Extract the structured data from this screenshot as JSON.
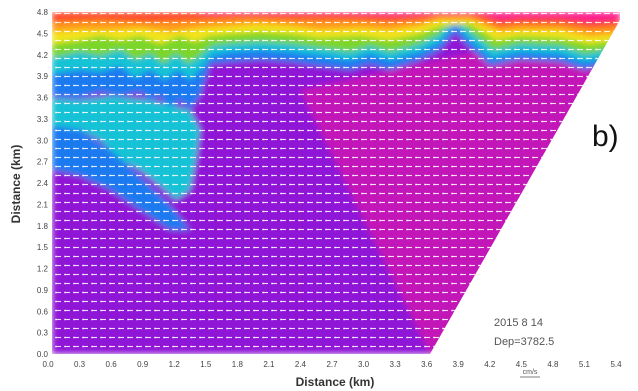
{
  "chart_data": {
    "type": "heatmap",
    "title": "",
    "panel_label": "b)",
    "xlabel": "Distance (km)",
    "ylabel": "Distance (km)",
    "xlim": [
      0,
      5.5
    ],
    "ylim": [
      0,
      4.8
    ],
    "x_ticks": [
      "0.0",
      "0.3",
      "0.6",
      "0.9",
      "1.2",
      "1.5",
      "1.8",
      "2.1",
      "2.4",
      "2.7",
      "3.0",
      "3.3",
      "3.6",
      "3.9",
      "4.2",
      "4.5",
      "4.8",
      "5.1",
      "5.4"
    ],
    "y_ticks": [
      "0.0",
      "0.3",
      "0.6",
      "0.9",
      "1.2",
      "1.5",
      "1.8",
      "2.1",
      "2.4",
      "2.7",
      "3.0",
      "3.3",
      "3.6",
      "3.9",
      "4.2",
      "4.5",
      "4.8"
    ],
    "annotation_date": "2015 8 14",
    "annotation_value": "Dep=3782.5",
    "colorbar_unit": "cm/s",
    "color_scale": [
      "#ff1f8f",
      "#ff4a2a",
      "#ff9a1a",
      "#f2e41a",
      "#7cd62a",
      "#1ac27a",
      "#18c2d6",
      "#1a7af0",
      "#3a3ae6",
      "#6622e0",
      "#8f18d6",
      "#c218b8",
      "#e01a9e"
    ],
    "regions": {
      "surface_band_top_y": 4.8,
      "fast_core_color": "#ff1f8f",
      "slow_interior_color": "#8f18d6",
      "no_data_color": "#ffffff"
    },
    "vector_density": "dense",
    "grid": false
  }
}
